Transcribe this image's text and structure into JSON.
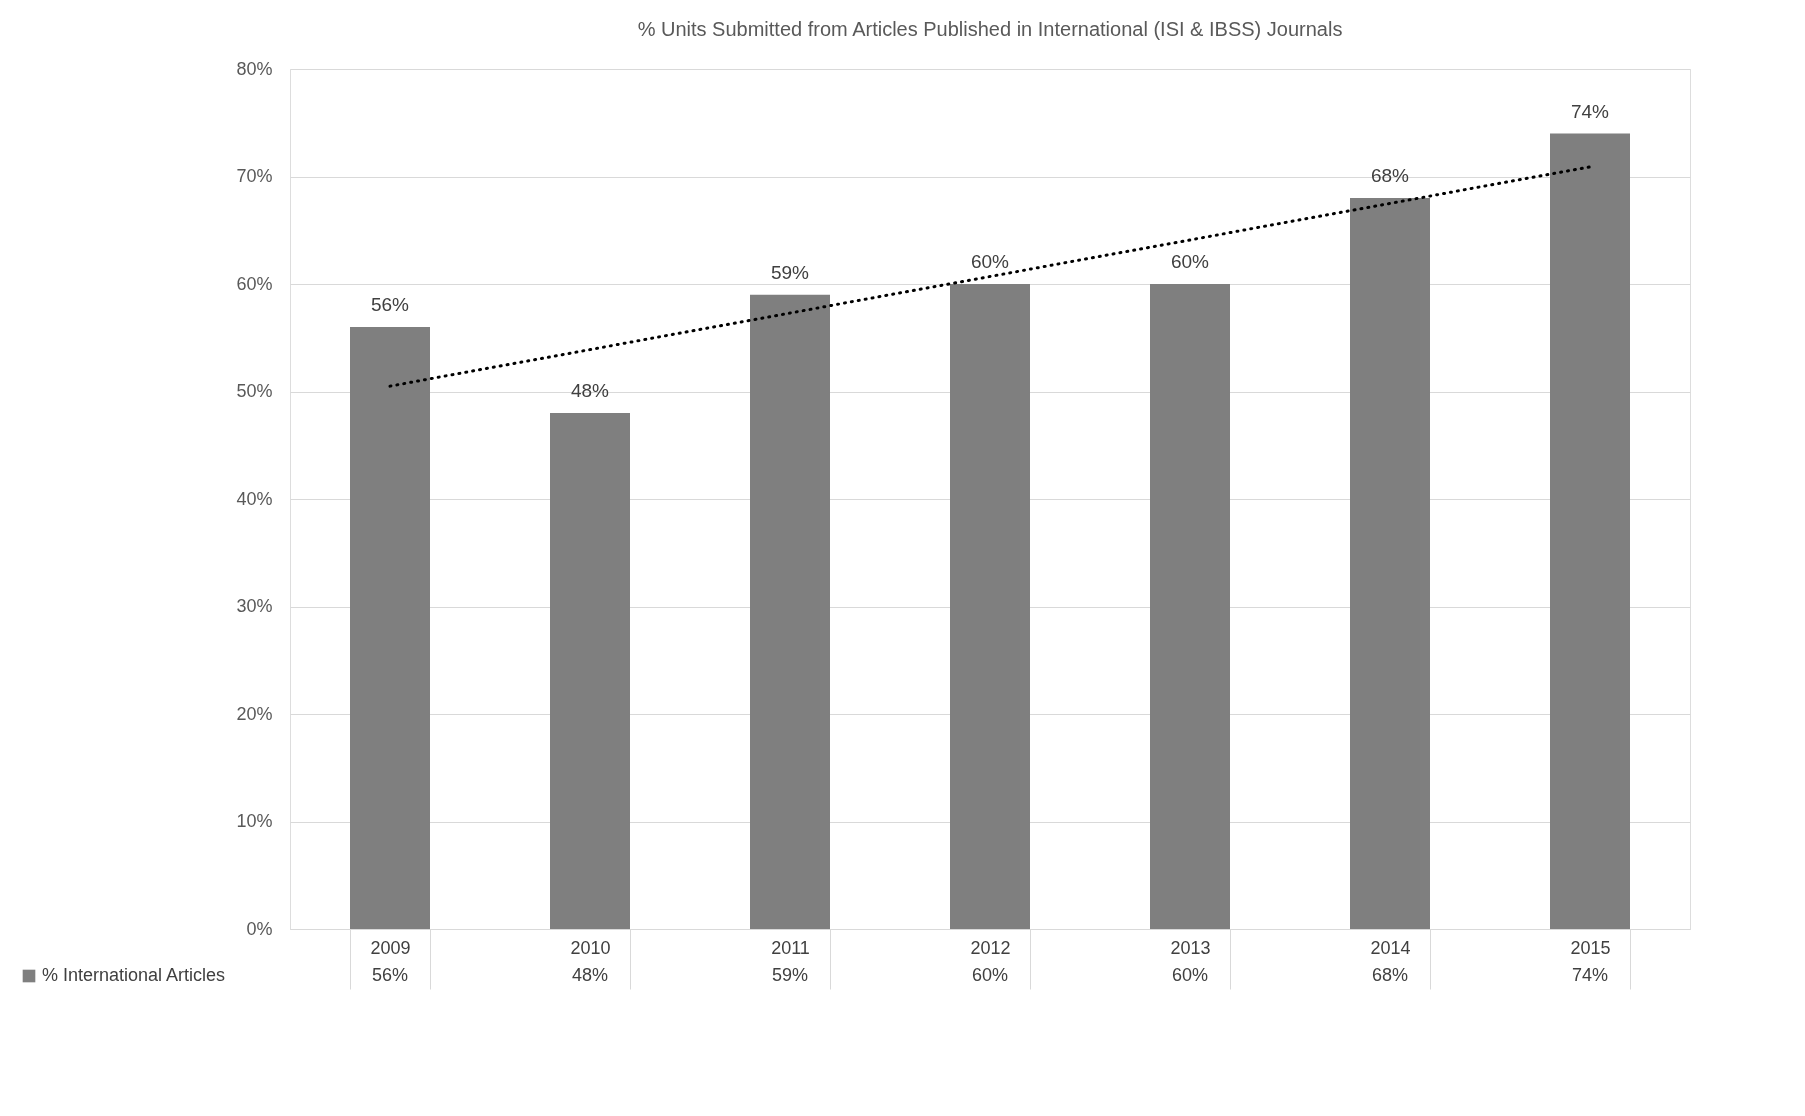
{
  "chart_data": {
    "type": "bar",
    "title": "% Units Submitted from Articles Published in International (ISI & IBSS) Journals",
    "categories": [
      "2009",
      "2010",
      "2011",
      "2012",
      "2013",
      "2014",
      "2015"
    ],
    "series": [
      {
        "name": "% International Articles",
        "color": "#7f7f7f",
        "values": [
          56,
          48,
          59,
          60,
          60,
          68,
          74
        ],
        "value_labels": [
          "56%",
          "48%",
          "59%",
          "60%",
          "60%",
          "68%",
          "74%"
        ]
      },
      {
        "type": "line",
        "color": "#000000",
        "line_style": "dotted",
        "values": [
          50.5,
          53.9,
          57.3,
          60.7,
          64.1,
          67.5,
          70.9
        ]
      }
    ],
    "ylim": [
      0,
      80
    ],
    "yticks": [
      {
        "value": 0,
        "label": "0%"
      },
      {
        "value": 10,
        "label": "10%"
      },
      {
        "value": 20,
        "label": "20%"
      },
      {
        "value": 30,
        "label": "30%"
      },
      {
        "value": 40,
        "label": "40%"
      },
      {
        "value": 50,
        "label": "50%"
      },
      {
        "value": 60,
        "label": "60%"
      },
      {
        "value": 70,
        "label": "70%"
      },
      {
        "value": 80,
        "label": "80%"
      }
    ],
    "grid": "y",
    "legend": "bottom"
  }
}
